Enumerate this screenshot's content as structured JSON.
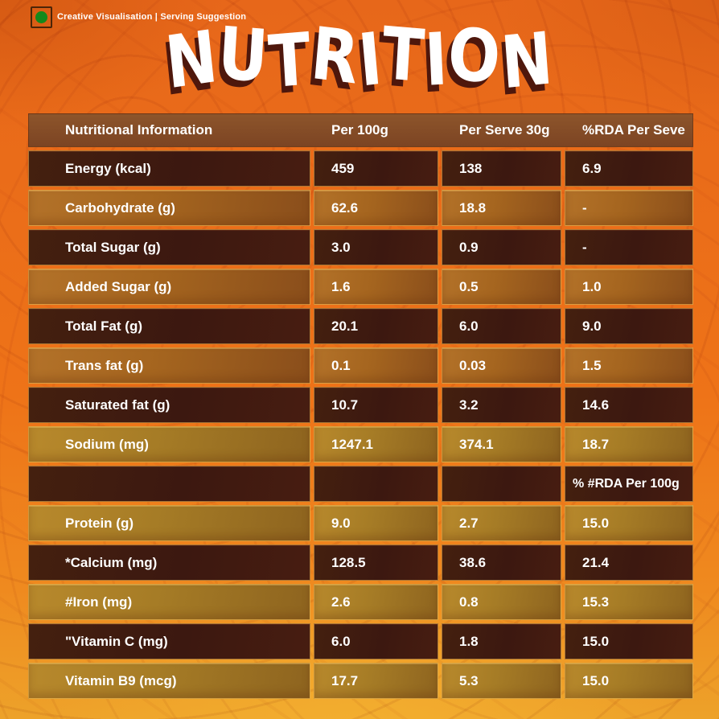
{
  "badge": {
    "label": "Creative Visualisation | Serving Suggestion",
    "veg_icon_color": "#14891c"
  },
  "title": {
    "text": "NUTRITION"
  },
  "table": {
    "headers": [
      "Nutritional Information",
      "Per 100g",
      "Per Serve 30g",
      "%RDA Per Seve"
    ],
    "rows": [
      {
        "label": "Energy (kcal)",
        "per100g": "459",
        "perServe": "138",
        "rda": "6.9",
        "variant": "dark"
      },
      {
        "label": "Carbohydrate (g)",
        "per100g": "62.6",
        "perServe": "18.8",
        "rda": "-",
        "variant": "light"
      },
      {
        "label": "Total Sugar (g)",
        "per100g": "3.0",
        "perServe": "0.9",
        "rda": "-",
        "variant": "dark"
      },
      {
        "label": "Added Sugar (g)",
        "per100g": "1.6",
        "perServe": "0.5",
        "rda": "1.0",
        "variant": "light"
      },
      {
        "label": "Total Fat (g)",
        "per100g": "20.1",
        "perServe": "6.0",
        "rda": "9.0",
        "variant": "dark"
      },
      {
        "label": "Trans fat (g)",
        "per100g": "0.1",
        "perServe": "0.03",
        "rda": "1.5",
        "variant": "light"
      },
      {
        "label": "Saturated fat (g)",
        "per100g": "10.7",
        "perServe": "3.2",
        "rda": "14.6",
        "variant": "dark"
      },
      {
        "label": "Sodium (mg)",
        "per100g": "1247.1",
        "perServe": "374.1",
        "rda": "18.7",
        "variant": "golden"
      },
      {
        "label": "",
        "per100g": "",
        "perServe": "",
        "rda": "% #RDA Per 100g",
        "variant": "dark",
        "separator": true
      },
      {
        "label": "Protein (g)",
        "per100g": "9.0",
        "perServe": "2.7",
        "rda": "15.0",
        "variant": "golden"
      },
      {
        "label": "*Calcium (mg)",
        "per100g": "128.5",
        "perServe": "38.6",
        "rda": "21.4",
        "variant": "dark"
      },
      {
        "label": "#Iron (mg)",
        "per100g": "2.6",
        "perServe": "0.8",
        "rda": "15.3",
        "variant": "golden"
      },
      {
        "label": "\"Vitamin C (mg)",
        "per100g": "6.0",
        "perServe": "1.8",
        "rda": "15.0",
        "variant": "dark"
      },
      {
        "label": "Vitamin B9 (mcg)",
        "per100g": "17.7",
        "perServe": "5.3",
        "rda": "15.0",
        "variant": "golden"
      }
    ]
  },
  "colors": {
    "background_orange": "#ee7318",
    "background_golden_bottom": "#f4b030",
    "header_brown": "#84502a",
    "row_dark": "#3e1b10",
    "row_light_orange": "#a5651f",
    "row_golden": "#a67c26",
    "title_white": "#ffffff",
    "title_shadow": "#4e170c",
    "veg_green": "#14891c",
    "text_white": "#ffffff"
  }
}
